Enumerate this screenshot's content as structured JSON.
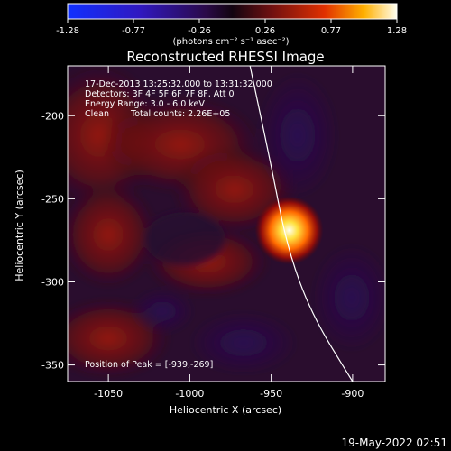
{
  "colorbar": {
    "ticks": [
      "-1.28",
      "-0.77",
      "-0.26",
      "0.26",
      "0.77",
      "1.28"
    ],
    "unit_label": "(photons cm⁻² s⁻¹ asec⁻²)"
  },
  "chart_data": {
    "type": "heatmap",
    "title": "Reconstructed RHESSI Image",
    "xlabel": "Heliocentric X (arcsec)",
    "ylabel": "Heliocentric Y (arcsec)",
    "xlim": [
      -1075,
      -880
    ],
    "ylim": [
      -360,
      -170
    ],
    "x_ticks": [
      "-1050",
      "-1000",
      "-950",
      "-900"
    ],
    "x_tick_values": [
      -1050,
      -1000,
      -950,
      -900
    ],
    "y_ticks": [
      "-200",
      "-250",
      "-300",
      "-350"
    ],
    "y_tick_values": [
      -200,
      -250,
      -300,
      -350
    ],
    "colorbar_range": [
      -1.28,
      1.28
    ],
    "peak": {
      "x": -939,
      "y": -269
    },
    "annotations": [
      "17-Dec-2013 13:25:32.000 to 13:31:32.000",
      "Detectors: 3F 4F 5F 6F 7F 8F, Att 0",
      "Energy Range: 3.0 - 6.0 keV",
      "Clean",
      "Total counts: 2.26E+05"
    ],
    "peak_label": "Position of Peak = [-939,-269]",
    "limb_points": [
      [
        -963,
        -170
      ],
      [
        -950,
        -230
      ],
      [
        -940,
        -280
      ],
      [
        -925,
        -320
      ],
      [
        -900,
        -360
      ]
    ]
  },
  "footer": {
    "timestamp": "19-May-2022 02:51"
  }
}
